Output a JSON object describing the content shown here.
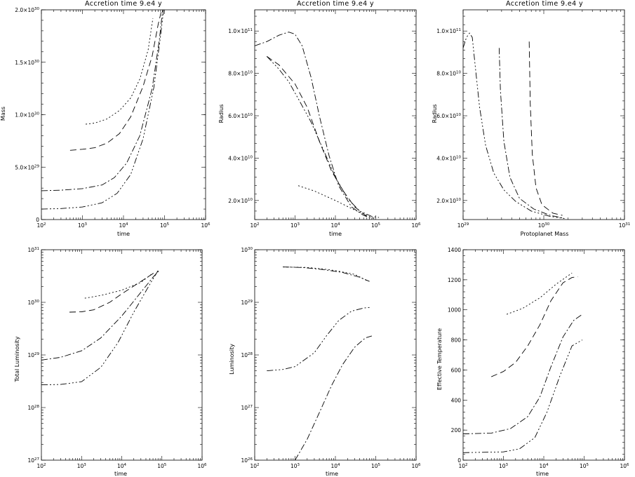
{
  "chart_data": [
    {
      "type": "line",
      "title": "Accretion time 9.e4 y",
      "xlabel": "time",
      "ylabel": "Mass",
      "xscale": "log",
      "yscale": "linear",
      "xlim": [
        100,
        1000000
      ],
      "ylim": [
        0,
        2e+30
      ],
      "xticks": [
        100,
        1000,
        10000,
        100000,
        1000000
      ],
      "yticks": [
        0,
        5e+29,
        1e+30,
        1.5e+30,
        2e+30
      ],
      "ytick_format": "sci",
      "series": [
        {
          "dash": "2,3",
          "points": [
            [
              1200,
              9.1e+29
            ],
            [
              2000,
              9.2e+29
            ],
            [
              4000,
              9.6e+29
            ],
            [
              8000,
              1.04e+30
            ],
            [
              15000,
              1.16e+30
            ],
            [
              25000,
              1.34e+30
            ],
            [
              40000,
              1.62e+30
            ],
            [
              52000,
              1.92e+30
            ]
          ]
        },
        {
          "dash": "9,5",
          "points": [
            [
              500,
              6.6e+29
            ],
            [
              1000,
              6.7e+29
            ],
            [
              2000,
              6.85e+29
            ],
            [
              4000,
              7.3e+29
            ],
            [
              8000,
              8.2e+29
            ],
            [
              15000,
              9.8e+29
            ],
            [
              30000,
              1.27e+30
            ],
            [
              50000,
              1.56e+30
            ],
            [
              70000,
              1.86e+30
            ],
            [
              85000,
              2e+30
            ]
          ]
        },
        {
          "dash": "9,3,2,3",
          "points": [
            [
              100,
              2.75e+29
            ],
            [
              300,
              2.8e+29
            ],
            [
              1000,
              2.95e+29
            ],
            [
              3000,
              3.3e+29
            ],
            [
              6000,
              4e+29
            ],
            [
              12000,
              5.4e+29
            ],
            [
              25000,
              8e+29
            ],
            [
              50000,
              1.25e+30
            ],
            [
              75000,
              1.72e+30
            ],
            [
              90000,
              2e+30
            ]
          ]
        },
        {
          "dash": "9,3,2,3,2,3,2,3",
          "points": [
            [
              100,
              1e+29
            ],
            [
              300,
              1.05e+29
            ],
            [
              1000,
              1.2e+29
            ],
            [
              3000,
              1.6e+29
            ],
            [
              7000,
              2.5e+29
            ],
            [
              15000,
              4.3e+29
            ],
            [
              30000,
              7.7e+29
            ],
            [
              55000,
              1.26e+30
            ],
            [
              80000,
              1.75e+30
            ],
            [
              95000,
              2e+30
            ]
          ]
        }
      ]
    },
    {
      "type": "line",
      "title": "Accretion time 9.e4 y",
      "xlabel": "time",
      "ylabel": "Radius",
      "xscale": "log",
      "yscale": "linear",
      "xlim": [
        100,
        1000000
      ],
      "ylim": [
        11000000000.0,
        110000000000.0
      ],
      "xticks": [
        100,
        1000,
        10000,
        100000,
        1000000
      ],
      "yticks": [
        20000000000.0,
        40000000000.0,
        60000000000.0,
        80000000000.0,
        100000000000.0
      ],
      "ytick_format": "sci",
      "series": [
        {
          "dash": "2,3",
          "points": [
            [
              1200,
              27000000000.0
            ],
            [
              3000,
              24500000000.0
            ],
            [
              10000,
              20000000000.0
            ],
            [
              30000,
              15500000000.0
            ],
            [
              70000,
              12500000000.0
            ],
            [
              90000,
              11500000000.0
            ]
          ]
        },
        {
          "dash": "9,5",
          "points": [
            [
              200,
              88000000000.0
            ],
            [
              400,
              84000000000.0
            ],
            [
              1000,
              75000000000.0
            ],
            [
              2000,
              64000000000.0
            ],
            [
              4000,
              48000000000.0
            ],
            [
              8000,
              34000000000.0
            ],
            [
              15000,
              25000000000.0
            ],
            [
              30000,
              17000000000.0
            ],
            [
              60000,
              12500000000.0
            ]
          ]
        },
        {
          "dash": "9,3,2,3",
          "points": [
            [
              100,
              93000000000.0
            ],
            [
              200,
              95000000000.0
            ],
            [
              400,
              98000000000.0
            ],
            [
              700,
              99500000000.0
            ],
            [
              1000,
              98500000000.0
            ],
            [
              1500,
              93000000000.0
            ],
            [
              2500,
              78000000000.0
            ],
            [
              4000,
              60000000000.0
            ],
            [
              7000,
              41000000000.0
            ],
            [
              12000,
              27000000000.0
            ],
            [
              25000,
              17000000000.0
            ],
            [
              50000,
              13000000000.0
            ],
            [
              80000,
              11500000000.0
            ]
          ]
        },
        {
          "dash": "9,3,2,3,2,3,2,3",
          "points": [
            [
              200,
              88000000000.0
            ],
            [
              400,
              82000000000.0
            ],
            [
              700,
              76000000000.0
            ],
            [
              1200,
              68000000000.0
            ],
            [
              2500,
              57000000000.0
            ],
            [
              5000,
              44000000000.0
            ],
            [
              10000,
              31000000000.0
            ],
            [
              20000,
              21000000000.0
            ],
            [
              40000,
              15000000000.0
            ],
            [
              80000,
              12500000000.0
            ],
            [
              120000,
              12000000000.0
            ]
          ]
        }
      ]
    },
    {
      "type": "line",
      "title": "Accretion time 9.e4 y",
      "xlabel": "Protoplanet Mass",
      "ylabel": "Radius",
      "xscale": "log",
      "yscale": "linear",
      "xlim": [
        1e+29,
        1e+31
      ],
      "ylim": [
        11000000000.0,
        110000000000.0
      ],
      "xticks": [
        1e+29,
        1e+30,
        1e+31
      ],
      "yticks": [
        20000000000.0,
        40000000000.0,
        60000000000.0,
        80000000000.0,
        100000000000.0
      ],
      "ytick_format": "sci",
      "series": [
        {
          "dash": "9,5",
          "points": [
            [
              6.6e+29,
              95000000000.0
            ],
            [
              6.8e+29,
              66000000000.0
            ],
            [
              7.2e+29,
              42000000000.0
            ],
            [
              8e+29,
              26000000000.0
            ],
            [
              9.5e+29,
              18000000000.0
            ],
            [
              1.3e+30,
              14000000000.0
            ],
            [
              1.7e+30,
              13000000000.0
            ]
          ]
        },
        {
          "dash": "9,3,2,3",
          "points": [
            [
              2.8e+29,
              92000000000.0
            ],
            [
              2.9e+29,
              72000000000.0
            ],
            [
              3.2e+29,
              48000000000.0
            ],
            [
              3.8e+29,
              31000000000.0
            ],
            [
              5e+29,
              21000000000.0
            ],
            [
              7.5e+29,
              16000000000.0
            ],
            [
              1.2e+30,
              13000000000.0
            ],
            [
              1.7e+30,
              11800000000.0
            ]
          ]
        },
        {
          "dash": "9,3,2,3,2,3,2,3",
          "points": [
            [
              1e+29,
              92000000000.0
            ],
            [
              1.1e+29,
              97000000000.0
            ],
            [
              1.2e+29,
              99000000000.0
            ],
            [
              1.3e+29,
              97000000000.0
            ],
            [
              1.4e+29,
              85000000000.0
            ],
            [
              1.6e+29,
              64000000000.0
            ],
            [
              1.9e+29,
              46000000000.0
            ],
            [
              2.4e+29,
              33000000000.0
            ],
            [
              3.2e+29,
              25000000000.0
            ],
            [
              4.5e+29,
              19500000000.0
            ],
            [
              7e+29,
              15000000000.0
            ],
            [
              1.2e+30,
              12500000000.0
            ],
            [
              1.8e+30,
              11500000000.0
            ]
          ]
        }
      ]
    },
    {
      "type": "line",
      "title": "",
      "xlabel": "time",
      "ylabel": "Total Luminosity",
      "xscale": "log",
      "yscale": "log",
      "xlim": [
        100,
        1000000
      ],
      "ylim": [
        1e+27,
        1e+31
      ],
      "xticks": [
        100,
        1000,
        10000,
        100000,
        1000000
      ],
      "yticks": [
        1e+27,
        1e+28,
        1e+29,
        1e+30,
        1e+31
      ],
      "ytick_format": "pow",
      "series": [
        {
          "dash": "2,3",
          "points": [
            [
              1200,
              1.2e+30
            ],
            [
              3000,
              1.35e+30
            ],
            [
              10000,
              1.7e+30
            ],
            [
              30000,
              2.4e+30
            ],
            [
              60000,
              3.6e+30
            ]
          ]
        },
        {
          "dash": "9,5",
          "points": [
            [
              500,
              6.5e+29
            ],
            [
              1000,
              6.6e+29
            ],
            [
              2000,
              7.2e+29
            ],
            [
              5000,
              1e+30
            ],
            [
              10000,
              1.45e+30
            ],
            [
              30000,
              2.5e+30
            ],
            [
              70000,
              3.8e+30
            ]
          ]
        },
        {
          "dash": "9,3,2,3",
          "points": [
            [
              100,
              8e+28
            ],
            [
              300,
              9e+28
            ],
            [
              1000,
              1.2e+29
            ],
            [
              3000,
              2.1e+29
            ],
            [
              10000,
              5.5e+29
            ],
            [
              30000,
              1.55e+30
            ],
            [
              60000,
              3e+30
            ],
            [
              85000,
              4e+30
            ]
          ]
        },
        {
          "dash": "9,3,2,3,2,3,2,3",
          "points": [
            [
              100,
              2.7e+28
            ],
            [
              300,
              2.75e+28
            ],
            [
              1000,
              3.1e+28
            ],
            [
              3000,
              5.8e+28
            ],
            [
              8000,
              1.7e+29
            ],
            [
              20000,
              6.5e+29
            ],
            [
              50000,
              2.2e+30
            ],
            [
              80000,
              4e+30
            ]
          ]
        }
      ]
    },
    {
      "type": "line",
      "title": "",
      "xlabel": "time",
      "ylabel": "Luminosity",
      "xscale": "log",
      "yscale": "log",
      "xlim": [
        100,
        1000000
      ],
      "ylim": [
        1e+26,
        1e+30
      ],
      "xticks": [
        100,
        1000,
        10000,
        100000,
        1000000
      ],
      "yticks": [
        1e+26,
        1e+27,
        1e+28,
        1e+29,
        1e+30
      ],
      "ytick_format": "pow",
      "series": [
        {
          "dash": "2,3",
          "points": [
            [
              500,
              4.7e+29
            ],
            [
              2000,
              4.6e+29
            ],
            [
              5000,
              4.3e+29
            ],
            [
              10000,
              4e+29
            ],
            [
              30000,
              3.4e+29
            ],
            [
              60000,
              2.6e+29
            ]
          ]
        },
        {
          "dash": "9,3,2,3",
          "points": [
            [
              500,
              4.7e+29
            ],
            [
              1500,
              4.6e+29
            ],
            [
              5000,
              4.2e+29
            ],
            [
              15000,
              3.7e+29
            ],
            [
              40000,
              3e+29
            ],
            [
              70000,
              2.5e+29
            ]
          ]
        },
        {
          "dash": "9,3,2,3,2,3,2,3",
          "points": [
            [
              200,
              5e+27
            ],
            [
              500,
              5.3e+27
            ],
            [
              1000,
              6e+27
            ],
            [
              3000,
              1.1e+28
            ],
            [
              6000,
              2.3e+28
            ],
            [
              12000,
              4.5e+28
            ],
            [
              25000,
              6.8e+28
            ],
            [
              50000,
              7.8e+28
            ],
            [
              70000,
              8e+28
            ]
          ]
        },
        {
          "dash": "9,3,2,3",
          "points": [
            [
              1000,
              1e+26
            ],
            [
              2000,
              2.5e+26
            ],
            [
              4000,
              8e+26
            ],
            [
              8000,
              2.6e+27
            ],
            [
              15000,
              6.5e+27
            ],
            [
              30000,
              1.4e+28
            ],
            [
              55000,
              2.1e+28
            ],
            [
              80000,
              2.3e+28
            ]
          ]
        }
      ]
    },
    {
      "type": "line",
      "title": "",
      "xlabel": "time",
      "ylabel": "Effective Temperature",
      "xscale": "log",
      "yscale": "linear",
      "xlim": [
        100,
        1000000
      ],
      "ylim": [
        0,
        1400
      ],
      "xticks": [
        100,
        1000,
        10000,
        100000,
        1000000
      ],
      "yticks": [
        0,
        200,
        400,
        600,
        800,
        1000,
        1200,
        1400
      ],
      "ytick_format": "plain",
      "series": [
        {
          "dash": "2,3",
          "points": [
            [
              1200,
              970
            ],
            [
              3000,
              1010
            ],
            [
              8000,
              1080
            ],
            [
              20000,
              1170
            ],
            [
              50000,
              1245
            ]
          ]
        },
        {
          "dash": "9,5",
          "points": [
            [
              500,
              555
            ],
            [
              1000,
              590
            ],
            [
              2000,
              650
            ],
            [
              4000,
              760
            ],
            [
              8000,
              900
            ],
            [
              15000,
              1060
            ],
            [
              30000,
              1180
            ],
            [
              50000,
              1215
            ],
            [
              70000,
              1220
            ]
          ]
        },
        {
          "dash": "9,3,2,3",
          "points": [
            [
              100,
              175
            ],
            [
              500,
              180
            ],
            [
              1500,
              210
            ],
            [
              4000,
              290
            ],
            [
              8000,
              420
            ],
            [
              15000,
              620
            ],
            [
              30000,
              820
            ],
            [
              55000,
              930
            ],
            [
              90000,
              970
            ]
          ]
        },
        {
          "dash": "9,3,2,3,2,3,2,3",
          "points": [
            [
              100,
              50
            ],
            [
              1000,
              55
            ],
            [
              2500,
              75
            ],
            [
              6000,
              150
            ],
            [
              12000,
              320
            ],
            [
              25000,
              560
            ],
            [
              50000,
              760
            ],
            [
              90000,
              800
            ]
          ]
        }
      ]
    }
  ]
}
